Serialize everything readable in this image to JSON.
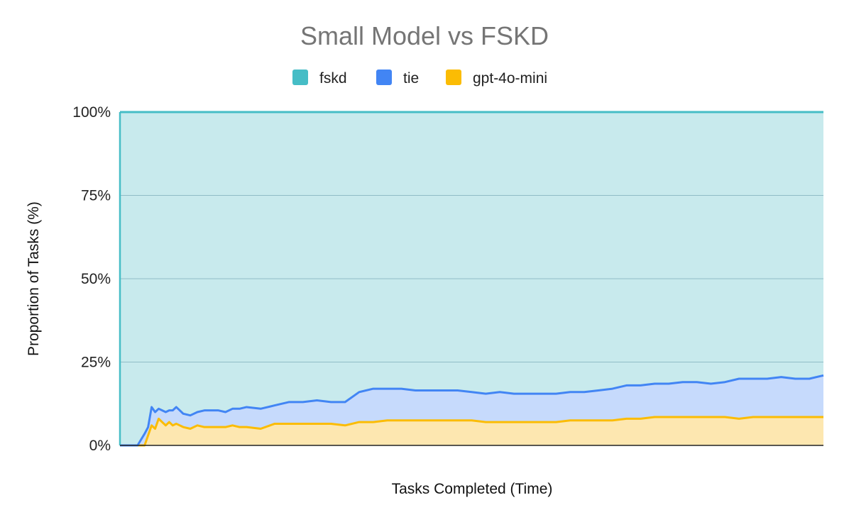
{
  "chart_data": {
    "type": "area",
    "stacked": true,
    "percent_stacked": true,
    "title": "Small Model vs FSKD",
    "xlabel": "Tasks Completed (Time)",
    "ylabel": "Proportion of Tasks (%)",
    "ylim": [
      0,
      100
    ],
    "yticks": [
      "0%",
      "25%",
      "50%",
      "75%",
      "100%"
    ],
    "ytick_values": [
      0,
      25,
      50,
      75,
      100
    ],
    "legend_position": "top",
    "grid": true,
    "x_range": [
      0,
      100
    ],
    "x": [
      0,
      2.5,
      3.5,
      4,
      4.5,
      5,
      5.5,
      6,
      6.5,
      7,
      7.5,
      8,
      9,
      10,
      11,
      12,
      13,
      14,
      15,
      16,
      17,
      18,
      20,
      22,
      24,
      26,
      28,
      30,
      32,
      34,
      36,
      38,
      40,
      42,
      44,
      46,
      47,
      48,
      50,
      52,
      54,
      56,
      58,
      60,
      62,
      64,
      66,
      68,
      70,
      72,
      74,
      76,
      78,
      80,
      82,
      84,
      86,
      88,
      90,
      92,
      94,
      96,
      98,
      100
    ],
    "series": [
      {
        "name": "gpt-4o-mini",
        "color": "#fbbc04",
        "fill": "#fde7b0",
        "values": [
          0,
          0,
          0,
          3,
          6,
          5,
          8,
          7,
          6,
          7,
          6,
          6.5,
          5.5,
          5,
          6,
          5.5,
          5.5,
          5.5,
          5.5,
          6,
          5.5,
          5.5,
          5,
          6.5,
          6.5,
          6.5,
          6.5,
          6.5,
          6,
          7,
          7,
          7.5,
          7.5,
          7.5,
          7.5,
          7.5,
          7.5,
          7.5,
          7.5,
          7,
          7,
          7,
          7,
          7,
          7,
          7.5,
          7.5,
          7.5,
          7.5,
          8,
          8,
          8.5,
          8.5,
          8.5,
          8.5,
          8.5,
          8.5,
          8,
          8.5,
          8.5,
          8.5,
          8.5,
          8.5,
          8.5
        ]
      },
      {
        "name": "tie",
        "color": "#4285f4",
        "fill": "#c6dafc",
        "values": [
          0,
          0,
          3.5,
          2.5,
          5.5,
          5,
          3,
          3.5,
          4,
          3.5,
          4.5,
          5,
          4,
          4,
          4,
          5,
          5,
          5,
          4.5,
          5,
          5.5,
          6,
          6,
          5.5,
          6.5,
          6.5,
          7,
          6.5,
          7,
          9,
          10,
          9.5,
          9.5,
          9,
          9,
          9,
          9,
          9,
          8.5,
          8.5,
          9,
          8.5,
          8.5,
          8.5,
          8.5,
          8.5,
          8.5,
          9,
          9.5,
          10,
          10,
          10,
          10,
          10.5,
          10.5,
          10,
          10.5,
          12,
          11.5,
          11.5,
          12,
          11.5,
          11.5,
          12.5
        ]
      },
      {
        "name": "fskd",
        "color": "#46bdc6",
        "fill": "#c8eaed",
        "values": [
          100,
          100,
          96.5,
          94.5,
          88.5,
          90,
          89,
          89.5,
          90,
          89.5,
          89.5,
          88.5,
          90.5,
          91,
          90,
          89.5,
          89.5,
          89.5,
          90,
          89,
          89,
          88.5,
          89,
          88,
          87,
          87,
          86.5,
          87,
          87,
          84,
          83,
          83,
          83,
          83.5,
          83.5,
          83.5,
          83.5,
          83.5,
          84,
          84.5,
          84,
          84.5,
          84.5,
          84.5,
          84.5,
          84,
          84,
          83.5,
          83,
          82,
          82,
          81.5,
          81.5,
          81,
          81,
          81.5,
          81,
          80,
          80,
          80,
          79.5,
          80,
          80,
          79
        ]
      }
    ],
    "legend": [
      {
        "name": "fskd",
        "color": "#46bdc6"
      },
      {
        "name": "tie",
        "color": "#4285f4"
      },
      {
        "name": "gpt-4o-mini",
        "color": "#fbbc04"
      }
    ],
    "gridline_color": "#8fbcc6"
  }
}
